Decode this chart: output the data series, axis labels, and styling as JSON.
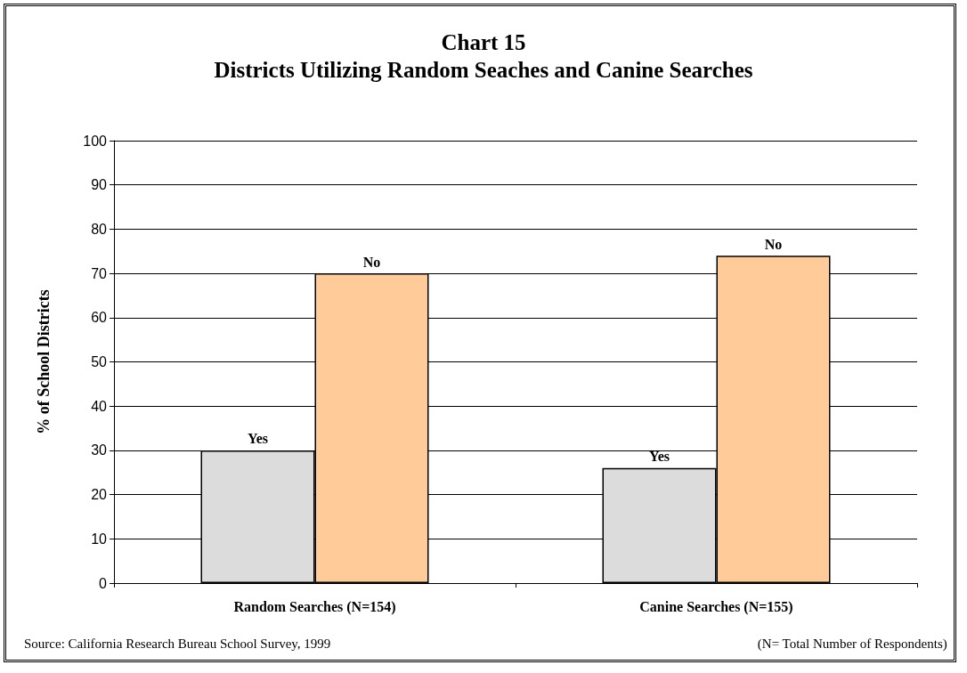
{
  "chart_data": {
    "type": "bar",
    "title": "Chart 15",
    "subtitle": "Districts Utilizing Random Seaches and Canine Searches",
    "ylabel": "% of School Districts",
    "categories": [
      "Random Searches (N=154)",
      "Canine Searches (N=155)"
    ],
    "series": [
      {
        "name": "Yes",
        "color": "#dcdcdc",
        "values": [
          30,
          26
        ]
      },
      {
        "name": "No",
        "color": "#ffcc99",
        "values": [
          70,
          74
        ]
      }
    ],
    "ylim": [
      0,
      100
    ],
    "yticks": [
      0,
      10,
      20,
      30,
      40,
      50,
      60,
      70,
      80,
      90,
      100
    ],
    "grid": "y",
    "annotations": [
      "Source: California Research Bureau School Survey, 1999",
      "(N= Total Number of Respondents)"
    ]
  }
}
